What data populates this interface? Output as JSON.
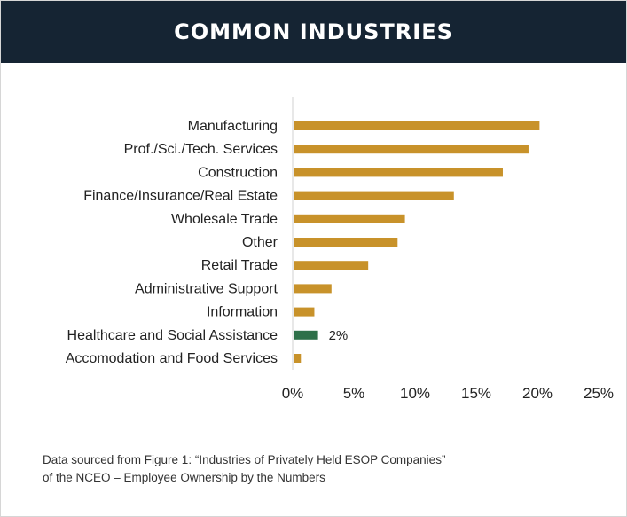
{
  "title": "COMMON INDUSTRIES",
  "colors": {
    "banner": "#152433",
    "bar": "#c8922a",
    "highlight": "#2e7049",
    "text": "#222222"
  },
  "chart_data": {
    "type": "bar",
    "orientation": "horizontal",
    "title": "",
    "xlabel": "",
    "ylabel": "",
    "xlim": [
      0,
      25
    ],
    "x_ticks": [
      "0%",
      "5%",
      "10%",
      "15%",
      "20%",
      "25%"
    ],
    "grid": false,
    "categories": [
      "Manufacturing",
      "Prof./Sci./Tech. Services",
      "Construction",
      "Finance/Insurance/Real Estate",
      "Wholesale Trade",
      "Other",
      "Retail Trade",
      "Administrative Support",
      "Information",
      "Healthcare and Social Assistance",
      "Accomodation and Food Services"
    ],
    "values": [
      20.1,
      19.2,
      17.1,
      13.1,
      9.1,
      8.5,
      6.1,
      3.1,
      1.7,
      2.0,
      0.6
    ],
    "highlight_index": 9,
    "data_labels": [
      {
        "index": 9,
        "text": "2%"
      }
    ]
  },
  "footnote": {
    "line1": "Data sourced from Figure 1: “Industries of Privately Held ESOP Companies”",
    "line2": "of the NCEO – Employee Ownership by the Numbers"
  }
}
